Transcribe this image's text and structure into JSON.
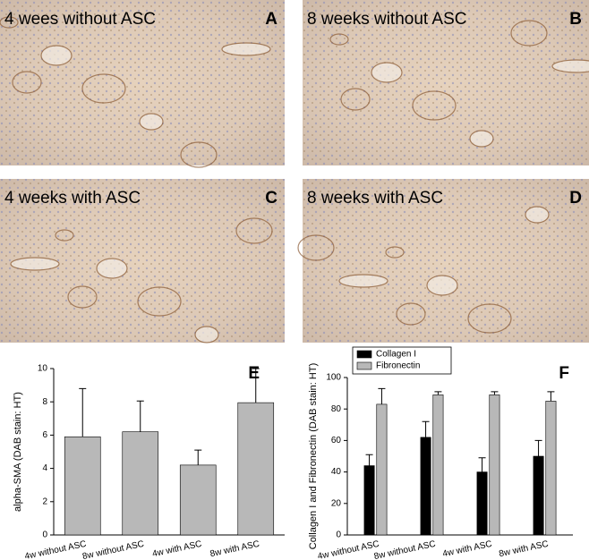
{
  "panels": [
    {
      "title": "4 wees without ASC",
      "letter": "A"
    },
    {
      "title": "8 weeks without ASC",
      "letter": "B"
    },
    {
      "title": "4 weeks with ASC",
      "letter": "C"
    },
    {
      "title": "8 weeks with ASC",
      "letter": "D"
    }
  ],
  "chart_data": [
    {
      "type": "bar",
      "label": "E",
      "ylabel": "alpha-SMA (DAB stain: HT)",
      "categories": [
        "4w without ASC",
        "8w without ASC",
        "4w with ASC",
        "8w with ASC"
      ],
      "values": [
        5.9,
        6.2,
        4.2,
        7.95
      ],
      "errors": [
        2.9,
        1.85,
        0.9,
        2.05
      ],
      "color": "#b8b8b8",
      "ylim": [
        0,
        10
      ],
      "yticks": [
        0,
        2,
        4,
        6,
        8,
        10
      ]
    },
    {
      "type": "bar",
      "label": "F",
      "ylabel": "Collagen I and Fibronectin (DAB stain: HT)",
      "categories": [
        "4w without ASC",
        "8w without ASC",
        "4w with ASC",
        "8w with ASC"
      ],
      "series": [
        {
          "name": "Collagen I",
          "color": "#000000",
          "values": [
            44,
            62,
            40,
            50
          ],
          "errors": [
            7,
            10,
            9,
            10
          ]
        },
        {
          "name": "Fibronectin",
          "color": "#b8b8b8",
          "values": [
            83,
            89,
            89,
            85
          ],
          "errors": [
            10,
            2,
            2,
            6
          ]
        }
      ],
      "legend": "top-left",
      "ylim": [
        0,
        100
      ],
      "yticks": [
        0,
        20,
        40,
        60,
        80,
        100
      ]
    }
  ]
}
